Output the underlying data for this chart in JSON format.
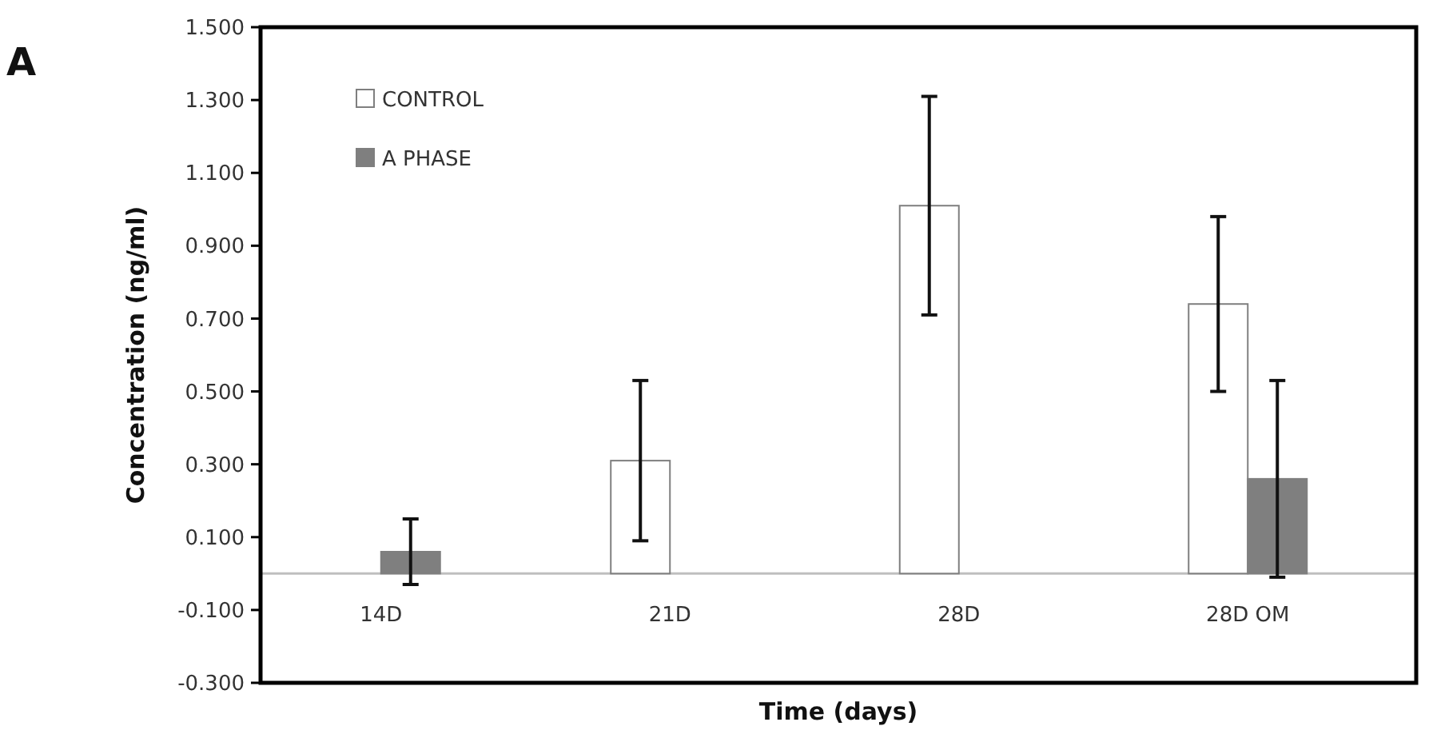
{
  "chart_data": {
    "type": "bar",
    "xlabel": "Time (days)",
    "ylabel": "Concentration (ng/ml)",
    "annotations": [
      "A"
    ],
    "categories": [
      "14D",
      "21D",
      "28D",
      "28D OM"
    ],
    "series": [
      {
        "name": "CONTROL",
        "color": "#ffffff",
        "values": [
          null,
          0.31,
          1.01,
          0.74
        ],
        "errors": [
          null,
          0.22,
          0.3,
          0.24
        ]
      },
      {
        "name": "A PHASE",
        "color": "#7f7f7f",
        "values": [
          0.06,
          null,
          null,
          0.26
        ],
        "errors": [
          0.09,
          null,
          null,
          0.27
        ]
      }
    ],
    "ylim": [
      -0.3,
      1.5
    ],
    "yticks": [
      {
        "value": -0.3,
        "label": "-0.300"
      },
      {
        "value": -0.1,
        "label": "-0.100"
      },
      {
        "value": 0.1,
        "label": "0.100"
      },
      {
        "value": 0.3,
        "label": "0.300"
      },
      {
        "value": 0.5,
        "label": "0.500"
      },
      {
        "value": 0.7,
        "label": "0.700"
      },
      {
        "value": 0.9,
        "label": "0.900"
      },
      {
        "value": 1.1,
        "label": "1.100"
      },
      {
        "value": 1.3,
        "label": "1.300"
      },
      {
        "value": 1.5,
        "label": "1.500"
      }
    ],
    "grid": false,
    "legend": "top left"
  }
}
